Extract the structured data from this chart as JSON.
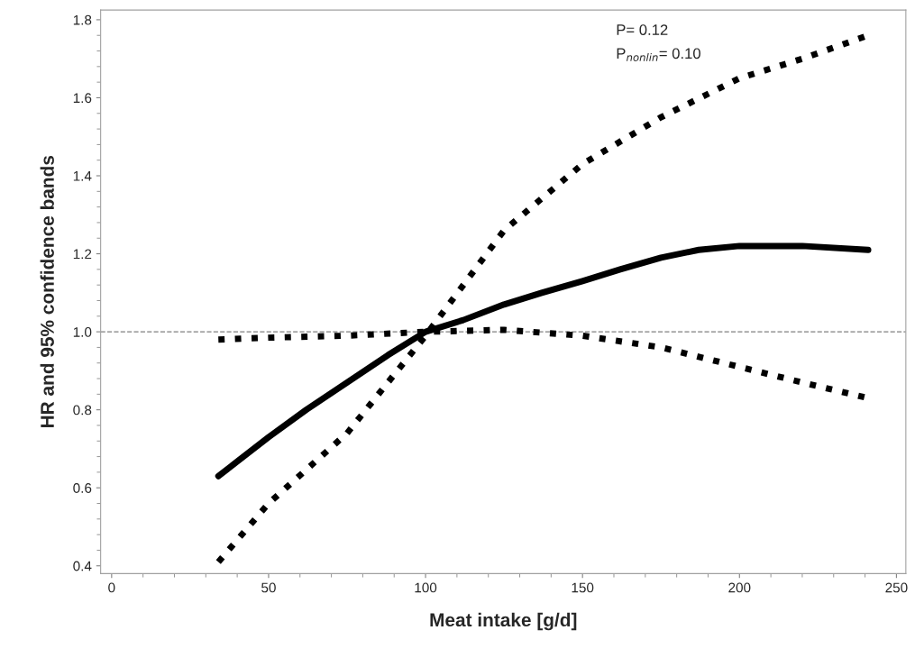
{
  "chart_data": {
    "type": "line",
    "xlabel": "Meat intake [g/d]",
    "ylabel": "HR and 95% confidence bands",
    "annotations": [
      "P= 0.12",
      "P$_{nonlin}$= 0.10"
    ],
    "xlim": [
      -3.5,
      253
    ],
    "ylim": [
      0.38,
      1.825
    ],
    "xticks": [
      0,
      50,
      100,
      150,
      200,
      250
    ],
    "yticks": [
      {
        "value": 0.4,
        "label": "0.4"
      },
      {
        "value": 0.6,
        "label": "0.6"
      },
      {
        "value": 0.8,
        "label": "0.8"
      },
      {
        "value": 1.0,
        "label": "1.0"
      },
      {
        "value": 1.2,
        "label": "1.2"
      },
      {
        "value": 1.4,
        "label": "1.4"
      },
      {
        "value": 1.6,
        "label": "1.6"
      },
      {
        "value": 1.8,
        "label": "1.8"
      }
    ],
    "grid": false,
    "marker": "none",
    "ref_lines": [
      {
        "axis": "y",
        "value": 1.0,
        "color": "#808080",
        "line_style": "dashed"
      }
    ],
    "series": [
      {
        "color": "#000000",
        "line_style": "solid",
        "x": [
          34,
          50,
          62,
          75,
          88,
          100,
          112,
          125,
          137,
          150,
          162,
          175,
          187,
          200,
          220,
          241
        ],
        "values": [
          0.63,
          0.73,
          0.8,
          0.87,
          0.94,
          1.0,
          1.03,
          1.07,
          1.1,
          1.13,
          1.16,
          1.19,
          1.21,
          1.22,
          1.22,
          1.21
        ]
      },
      {
        "color": "#000000",
        "line_style": "dotted",
        "x": [
          34,
          50,
          75,
          100,
          125,
          150,
          175,
          200,
          220,
          241
        ],
        "values": [
          0.41,
          0.56,
          0.74,
          0.99,
          1.26,
          1.43,
          1.55,
          1.65,
          1.7,
          1.76
        ]
      },
      {
        "color": "#000000",
        "line_style": "dotted",
        "x": [
          34,
          50,
          75,
          100,
          125,
          150,
          175,
          200,
          220,
          241
        ],
        "values": [
          0.98,
          0.985,
          0.99,
          1.0,
          1.005,
          0.99,
          0.96,
          0.91,
          0.87,
          0.83
        ]
      }
    ]
  }
}
